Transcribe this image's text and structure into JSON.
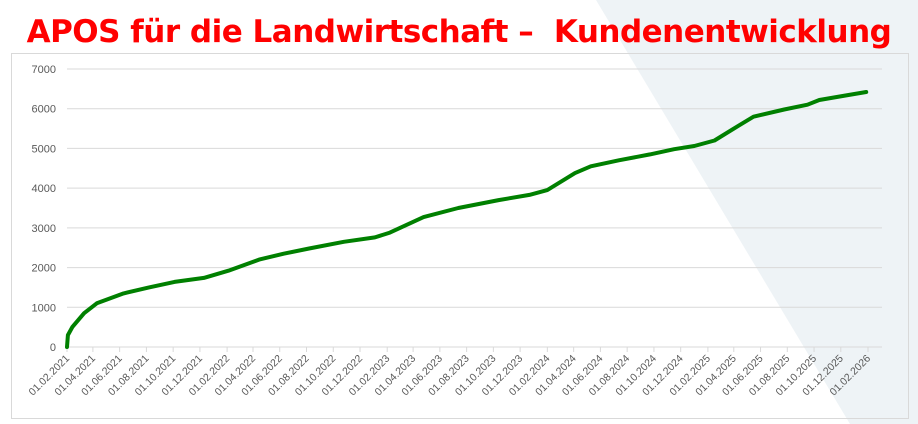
{
  "chart_data": {
    "type": "line",
    "title": "APOS für die Landwirtschaft –  Kundenentwicklung",
    "xlabel": "",
    "ylabel": "",
    "ylim": [
      0,
      7000
    ],
    "yticks": [
      "0",
      "1000",
      "2000",
      "3000",
      "4000",
      "5000",
      "6000",
      "7000"
    ],
    "xticks": [
      "01.02.2021",
      "01.04.2021",
      "01.06.2021",
      "01.08.2021",
      "01.10.2021",
      "01.12.2021",
      "01.02.2022",
      "01.04.2022",
      "01.06.2022",
      "01.08.2022",
      "01.10.2022",
      "01.12.2022",
      "01.02.2023",
      "01.04.2023",
      "01.06.2023",
      "01.08.2023",
      "01.10.2023",
      "01.12.2023",
      "01.02.2024",
      "01.04.2024",
      "01.06.2024",
      "01.08.2024",
      "01.10.2024",
      "01.12.2024",
      "01.02.2025",
      "01.04.2025",
      "01.06.2025",
      "01.08.2025",
      "01.10.2025",
      "01.12.2025",
      "01.02.2026"
    ],
    "xlim": [
      "2021-02-01",
      "2026-02-01"
    ],
    "grid": true,
    "legend": "none",
    "line_color": "#008000",
    "series": [
      {
        "x": [
          "2021-02-01",
          "2021-02-03",
          "2021-02-13",
          "2021-03-12",
          "2021-04-10",
          "2021-06-10",
          "2021-08-07",
          "2021-10-04",
          "2021-12-10",
          "2022-02-04",
          "2022-04-15",
          "2022-06-10",
          "2022-08-07",
          "2022-10-25",
          "2023-01-04",
          "2023-02-07",
          "2023-04-25",
          "2023-07-13",
          "2023-10-13",
          "2023-12-22",
          "2024-02-01",
          "2024-04-04",
          "2024-05-10",
          "2024-07-13",
          "2024-09-22",
          "2024-11-16",
          "2025-01-01",
          "2025-02-16",
          "2025-04-13",
          "2025-05-16",
          "2025-07-25",
          "2025-09-16",
          "2025-10-13",
          "2025-12-10",
          "2026-01-28"
        ],
        "values": [
          0,
          300,
          500,
          850,
          1100,
          1350,
          1500,
          1640,
          1740,
          1920,
          2200,
          2350,
          2480,
          2650,
          2760,
          2880,
          3270,
          3500,
          3700,
          3830,
          3950,
          4380,
          4550,
          4700,
          4850,
          4980,
          5060,
          5200,
          5580,
          5800,
          5980,
          6100,
          6220,
          6330,
          6420
        ]
      }
    ]
  }
}
